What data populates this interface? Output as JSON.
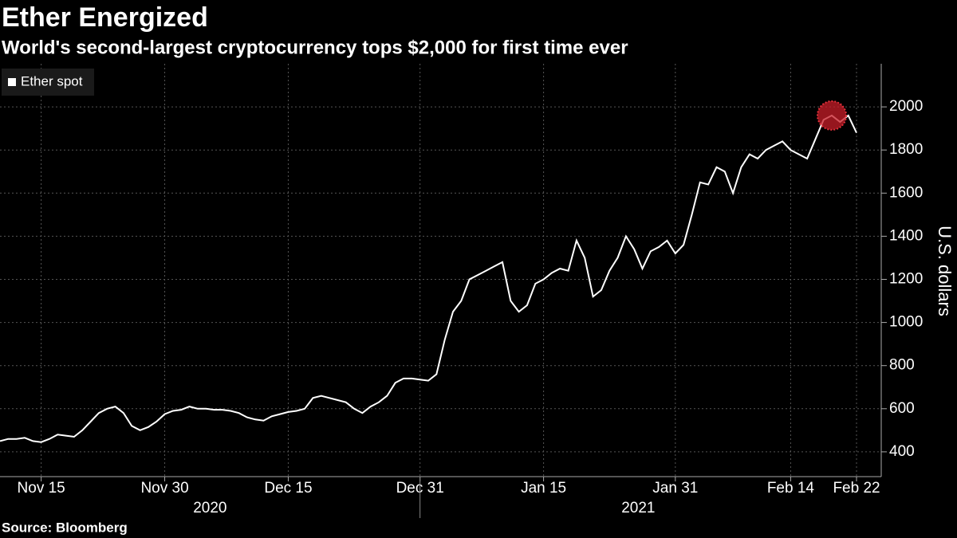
{
  "chart_data": {
    "type": "line",
    "title": "Ether Energized",
    "subtitle": "World's second-largest cryptocurrency tops $2,000 for first time ever",
    "source": "Source: Bloomberg",
    "y_label": "U.S. dollars",
    "year_labels": [
      "2020",
      "2021"
    ],
    "grid": true,
    "legend": "top-left",
    "xlim": [
      "2020-11-10",
      "2021-02-25"
    ],
    "ylim": [
      285,
      2200
    ],
    "yticks": [
      400,
      600,
      800,
      1000,
      1200,
      1400,
      1600,
      1800,
      2000
    ],
    "xticks": [
      {
        "value": "2020-11-15",
        "label": "Nov 15"
      },
      {
        "value": "2020-11-30",
        "label": "Nov 30"
      },
      {
        "value": "2020-12-15",
        "label": "Dec 15"
      },
      {
        "value": "2020-12-31",
        "label": "Dec 31"
      },
      {
        "value": "2021-01-15",
        "label": "Jan 15"
      },
      {
        "value": "2021-01-31",
        "label": "Jan 31"
      },
      {
        "value": "2021-02-14",
        "label": "Feb 14"
      },
      {
        "value": "2021-02-22",
        "label": "Feb 22"
      }
    ],
    "x": [
      "2020-11-10",
      "2020-11-11",
      "2020-11-12",
      "2020-11-13",
      "2020-11-14",
      "2020-11-15",
      "2020-11-16",
      "2020-11-17",
      "2020-11-18",
      "2020-11-19",
      "2020-11-20",
      "2020-11-21",
      "2020-11-22",
      "2020-11-23",
      "2020-11-24",
      "2020-11-25",
      "2020-11-26",
      "2020-11-27",
      "2020-11-28",
      "2020-11-29",
      "2020-11-30",
      "2020-12-01",
      "2020-12-02",
      "2020-12-03",
      "2020-12-04",
      "2020-12-05",
      "2020-12-06",
      "2020-12-07",
      "2020-12-08",
      "2020-12-09",
      "2020-12-10",
      "2020-12-11",
      "2020-12-12",
      "2020-12-13",
      "2020-12-14",
      "2020-12-15",
      "2020-12-16",
      "2020-12-17",
      "2020-12-18",
      "2020-12-19",
      "2020-12-20",
      "2020-12-21",
      "2020-12-22",
      "2020-12-23",
      "2020-12-24",
      "2020-12-25",
      "2020-12-26",
      "2020-12-27",
      "2020-12-28",
      "2020-12-29",
      "2020-12-30",
      "2020-12-31",
      "2021-01-01",
      "2021-01-02",
      "2021-01-03",
      "2021-01-04",
      "2021-01-05",
      "2021-01-06",
      "2021-01-07",
      "2021-01-08",
      "2021-01-09",
      "2021-01-10",
      "2021-01-11",
      "2021-01-12",
      "2021-01-13",
      "2021-01-14",
      "2021-01-15",
      "2021-01-16",
      "2021-01-17",
      "2021-01-18",
      "2021-01-19",
      "2021-01-20",
      "2021-01-21",
      "2021-01-22",
      "2021-01-23",
      "2021-01-24",
      "2021-01-25",
      "2021-01-26",
      "2021-01-27",
      "2021-01-28",
      "2021-01-29",
      "2021-01-30",
      "2021-01-31",
      "2021-02-01",
      "2021-02-02",
      "2021-02-03",
      "2021-02-04",
      "2021-02-05",
      "2021-02-06",
      "2021-02-07",
      "2021-02-08",
      "2021-02-09",
      "2021-02-10",
      "2021-02-11",
      "2021-02-12",
      "2021-02-13",
      "2021-02-14",
      "2021-02-15",
      "2021-02-16",
      "2021-02-17",
      "2021-02-18",
      "2021-02-19",
      "2021-02-20",
      "2021-02-21",
      "2021-02-22"
    ],
    "series": [
      {
        "name": "Ether spot",
        "color": "#ffffff",
        "values": [
          450,
          460,
          460,
          465,
          450,
          445,
          460,
          480,
          475,
          470,
          500,
          540,
          580,
          600,
          610,
          580,
          520,
          500,
          515,
          540,
          575,
          590,
          595,
          610,
          600,
          600,
          595,
          595,
          590,
          580,
          560,
          550,
          545,
          565,
          575,
          585,
          590,
          600,
          650,
          660,
          650,
          640,
          630,
          600,
          580,
          610,
          630,
          660,
          720,
          740,
          740,
          735,
          730,
          760,
          920,
          1050,
          1100,
          1200,
          1220,
          1240,
          1260,
          1280,
          1100,
          1050,
          1080,
          1180,
          1200,
          1230,
          1250,
          1240,
          1380,
          1300,
          1120,
          1150,
          1240,
          1300,
          1400,
          1340,
          1250,
          1330,
          1350,
          1380,
          1320,
          1360,
          1500,
          1650,
          1640,
          1720,
          1700,
          1600,
          1720,
          1780,
          1760,
          1800,
          1820,
          1840,
          1800,
          1780,
          1760,
          1850,
          1940,
          1960,
          1930,
          1960,
          1880
        ]
      }
    ]
  }
}
